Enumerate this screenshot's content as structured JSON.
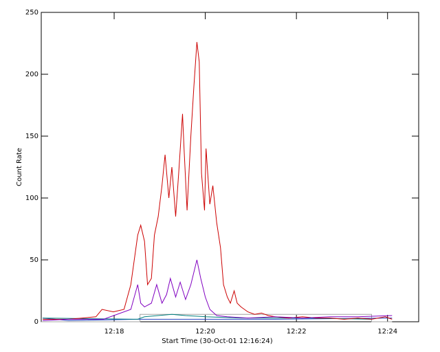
{
  "chart_data": {
    "type": "line",
    "xlabel": "Start Time (30-Oct-01 12:16:24)",
    "ylabel": "Count Rate",
    "xlim": [
      0,
      497
    ],
    "xticks": [
      {
        "value": 96,
        "label": "12:18"
      },
      {
        "value": 216,
        "label": "12:20"
      },
      {
        "value": 336,
        "label": "12:22"
      },
      {
        "value": 456,
        "label": "12:24"
      }
    ],
    "ylim": [
      0,
      250
    ],
    "yticks": [
      0,
      50,
      100,
      150,
      200,
      250
    ],
    "series": [
      {
        "color": "#a0a0a0",
        "x": [
          0,
          130,
          130,
          435,
          435,
          462
        ],
        "values": [
          0,
          0,
          6,
          6,
          0,
          0
        ]
      },
      {
        "color": "#2040c0",
        "x": [
          2,
          36,
          127,
          308,
          462
        ],
        "values": [
          3,
          1,
          2,
          2,
          3
        ]
      },
      {
        "color": "#008080",
        "x": [
          2,
          127,
          136,
          154,
          172,
          190,
          217,
          263,
          308,
          354,
          435
        ],
        "values": [
          3,
          2,
          4,
          5,
          6,
          5,
          4,
          3,
          3,
          3,
          2
        ]
      },
      {
        "color": "#cc0000",
        "x": [
          2,
          36,
          72,
          80,
          95,
          109,
          118,
          127,
          131,
          136,
          140,
          145,
          149,
          154,
          159,
          163,
          168,
          172,
          177,
          181,
          186,
          188,
          192,
          197,
          201,
          205,
          208,
          211,
          215,
          217,
          222,
          226,
          231,
          236,
          240,
          245,
          249,
          254,
          258,
          263,
          272,
          281,
          290,
          299,
          308,
          326,
          344,
          362,
          380,
          399,
          417,
          435,
          453,
          462
        ],
        "values": [
          2,
          2,
          4,
          10,
          8,
          10,
          30,
          70,
          78,
          65,
          30,
          35,
          70,
          85,
          110,
          135,
          100,
          125,
          85,
          120,
          168,
          140,
          90,
          150,
          190,
          226,
          210,
          120,
          90,
          140,
          95,
          110,
          80,
          60,
          30,
          20,
          15,
          25,
          15,
          12,
          8,
          6,
          7,
          5,
          4,
          3,
          4,
          3,
          3,
          2,
          3,
          2,
          4,
          2
        ]
      },
      {
        "color": "#8000c0",
        "x": [
          2,
          36,
          82,
          118,
          127,
          131,
          136,
          145,
          152,
          159,
          165,
          170,
          177,
          183,
          190,
          197,
          205,
          210,
          216,
          222,
          231,
          245,
          272,
          308,
          344,
          380,
          417,
          462
        ],
        "values": [
          1,
          2,
          2,
          10,
          30,
          15,
          12,
          15,
          30,
          15,
          22,
          35,
          20,
          32,
          18,
          30,
          50,
          35,
          20,
          10,
          5,
          4,
          3,
          4,
          3,
          4,
          4,
          5
        ]
      }
    ]
  }
}
